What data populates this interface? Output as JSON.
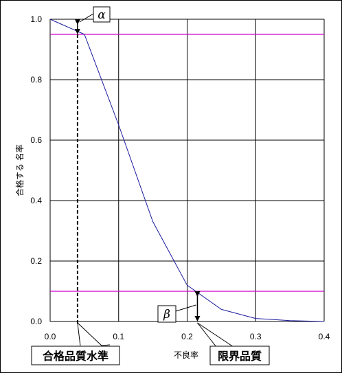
{
  "chart_data": {
    "type": "line",
    "title": "",
    "xlabel": "不良率",
    "ylabel": "合格する 名率",
    "xlim": [
      0.0,
      0.4
    ],
    "ylim": [
      0.0,
      1.0
    ],
    "x_ticks": [
      "0.0",
      "0.1",
      "0.2",
      "0.3",
      "0.4"
    ],
    "y_ticks": [
      "0.0",
      "0.2",
      "0.4",
      "0.6",
      "0.8",
      "1.0"
    ],
    "grid": true,
    "series": [
      {
        "color": "#1a1aa0",
        "x": [
          0.0,
          0.05,
          0.1,
          0.15,
          0.2,
          0.25,
          0.3,
          0.35,
          0.4
        ],
        "y": [
          1.0,
          0.95,
          0.65,
          0.33,
          0.12,
          0.04,
          0.01,
          0.003,
          0.0
        ]
      }
    ],
    "reference_lines": [
      {
        "y": 0.95,
        "color": "#cc00cc"
      },
      {
        "y": 0.1,
        "color": "#cc00cc"
      }
    ],
    "annotations": [
      {
        "symbol": "α",
        "x": 0.04,
        "from": 0.95,
        "to": 1.0
      },
      {
        "symbol": "β",
        "x": 0.215,
        "from": 0.0,
        "to": 0.1
      },
      {
        "label": "合格品質水準",
        "x": 0.04
      },
      {
        "label": "限界品質",
        "x": 0.215
      }
    ]
  }
}
